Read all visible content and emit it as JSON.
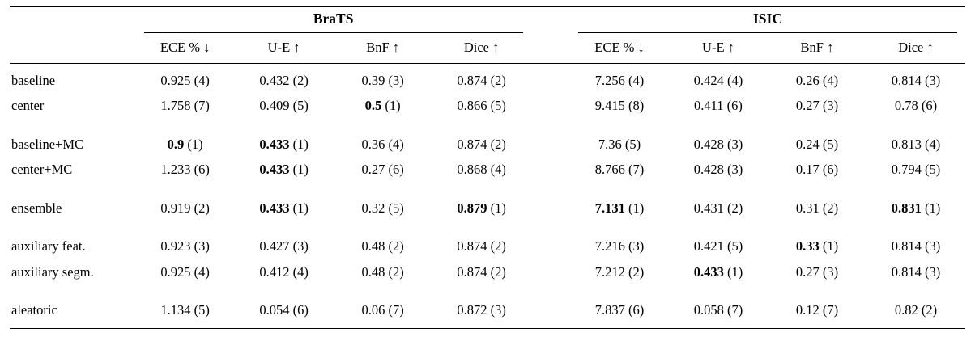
{
  "table": {
    "group_headers": [
      {
        "label": "BraTS"
      },
      {
        "label": "ISIC"
      }
    ],
    "columns": [
      {
        "label": "ECE % ↓"
      },
      {
        "label": "U-E ↑"
      },
      {
        "label": "BnF ↑"
      },
      {
        "label": "Dice ↑"
      }
    ],
    "rows": [
      {
        "label": "baseline",
        "group_start": false,
        "cells": [
          {
            "value": "0.925",
            "rank": "(4)",
            "bold": false
          },
          {
            "value": "0.432",
            "rank": "(2)",
            "bold": false
          },
          {
            "value": "0.39",
            "rank": "(3)",
            "bold": false
          },
          {
            "value": "0.874",
            "rank": "(2)",
            "bold": false
          },
          {
            "value": "7.256",
            "rank": "(4)",
            "bold": false
          },
          {
            "value": "0.424",
            "rank": "(4)",
            "bold": false
          },
          {
            "value": "0.26",
            "rank": "(4)",
            "bold": false
          },
          {
            "value": "0.814",
            "rank": "(3)",
            "bold": false
          }
        ]
      },
      {
        "label": "center",
        "group_start": false,
        "cells": [
          {
            "value": "1.758",
            "rank": "(7)",
            "bold": false
          },
          {
            "value": "0.409",
            "rank": "(5)",
            "bold": false
          },
          {
            "value": "0.5",
            "rank": "(1)",
            "bold": true
          },
          {
            "value": "0.866",
            "rank": "(5)",
            "bold": false
          },
          {
            "value": "9.415",
            "rank": "(8)",
            "bold": false
          },
          {
            "value": "0.411",
            "rank": "(6)",
            "bold": false
          },
          {
            "value": "0.27",
            "rank": "(3)",
            "bold": false
          },
          {
            "value": "0.78",
            "rank": "(6)",
            "bold": false
          }
        ]
      },
      {
        "label": "baseline+MC",
        "group_start": true,
        "cells": [
          {
            "value": "0.9",
            "rank": "(1)",
            "bold": true
          },
          {
            "value": "0.433",
            "rank": "(1)",
            "bold": true
          },
          {
            "value": "0.36",
            "rank": "(4)",
            "bold": false
          },
          {
            "value": "0.874",
            "rank": "(2)",
            "bold": false
          },
          {
            "value": "7.36",
            "rank": "(5)",
            "bold": false
          },
          {
            "value": "0.428",
            "rank": "(3)",
            "bold": false
          },
          {
            "value": "0.24",
            "rank": "(5)",
            "bold": false
          },
          {
            "value": "0.813",
            "rank": "(4)",
            "bold": false
          }
        ]
      },
      {
        "label": "center+MC",
        "group_start": false,
        "cells": [
          {
            "value": "1.233",
            "rank": "(6)",
            "bold": false
          },
          {
            "value": "0.433",
            "rank": "(1)",
            "bold": true
          },
          {
            "value": "0.27",
            "rank": "(6)",
            "bold": false
          },
          {
            "value": "0.868",
            "rank": "(4)",
            "bold": false
          },
          {
            "value": "8.766",
            "rank": "(7)",
            "bold": false
          },
          {
            "value": "0.428",
            "rank": "(3)",
            "bold": false
          },
          {
            "value": "0.17",
            "rank": "(6)",
            "bold": false
          },
          {
            "value": "0.794",
            "rank": "(5)",
            "bold": false
          }
        ]
      },
      {
        "label": "ensemble",
        "group_start": true,
        "cells": [
          {
            "value": "0.919",
            "rank": "(2)",
            "bold": false
          },
          {
            "value": "0.433",
            "rank": "(1)",
            "bold": true
          },
          {
            "value": "0.32",
            "rank": "(5)",
            "bold": false
          },
          {
            "value": "0.879",
            "rank": "(1)",
            "bold": true
          },
          {
            "value": "7.131",
            "rank": "(1)",
            "bold": true
          },
          {
            "value": "0.431",
            "rank": "(2)",
            "bold": false
          },
          {
            "value": "0.31",
            "rank": "(2)",
            "bold": false
          },
          {
            "value": "0.831",
            "rank": "(1)",
            "bold": true
          }
        ]
      },
      {
        "label": "auxiliary feat.",
        "group_start": true,
        "cells": [
          {
            "value": "0.923",
            "rank": "(3)",
            "bold": false
          },
          {
            "value": "0.427",
            "rank": "(3)",
            "bold": false
          },
          {
            "value": "0.48",
            "rank": "(2)",
            "bold": false
          },
          {
            "value": "0.874",
            "rank": "(2)",
            "bold": false
          },
          {
            "value": "7.216",
            "rank": "(3)",
            "bold": false
          },
          {
            "value": "0.421",
            "rank": "(5)",
            "bold": false
          },
          {
            "value": "0.33",
            "rank": "(1)",
            "bold": true
          },
          {
            "value": "0.814",
            "rank": "(3)",
            "bold": false
          }
        ]
      },
      {
        "label": "auxiliary segm.",
        "group_start": false,
        "cells": [
          {
            "value": "0.925",
            "rank": "(4)",
            "bold": false
          },
          {
            "value": "0.412",
            "rank": "(4)",
            "bold": false
          },
          {
            "value": "0.48",
            "rank": "(2)",
            "bold": false
          },
          {
            "value": "0.874",
            "rank": "(2)",
            "bold": false
          },
          {
            "value": "7.212",
            "rank": "(2)",
            "bold": false
          },
          {
            "value": "0.433",
            "rank": "(1)",
            "bold": true
          },
          {
            "value": "0.27",
            "rank": "(3)",
            "bold": false
          },
          {
            "value": "0.814",
            "rank": "(3)",
            "bold": false
          }
        ]
      },
      {
        "label": "aleatoric",
        "group_start": true,
        "cells": [
          {
            "value": "1.134",
            "rank": "(5)",
            "bold": false
          },
          {
            "value": "0.054",
            "rank": "(6)",
            "bold": false
          },
          {
            "value": "0.06",
            "rank": "(7)",
            "bold": false
          },
          {
            "value": "0.872",
            "rank": "(3)",
            "bold": false
          },
          {
            "value": "7.837",
            "rank": "(6)",
            "bold": false
          },
          {
            "value": "0.058",
            "rank": "(7)",
            "bold": false
          },
          {
            "value": "0.12",
            "rank": "(7)",
            "bold": false
          },
          {
            "value": "0.82",
            "rank": "(2)",
            "bold": false
          }
        ]
      }
    ]
  }
}
